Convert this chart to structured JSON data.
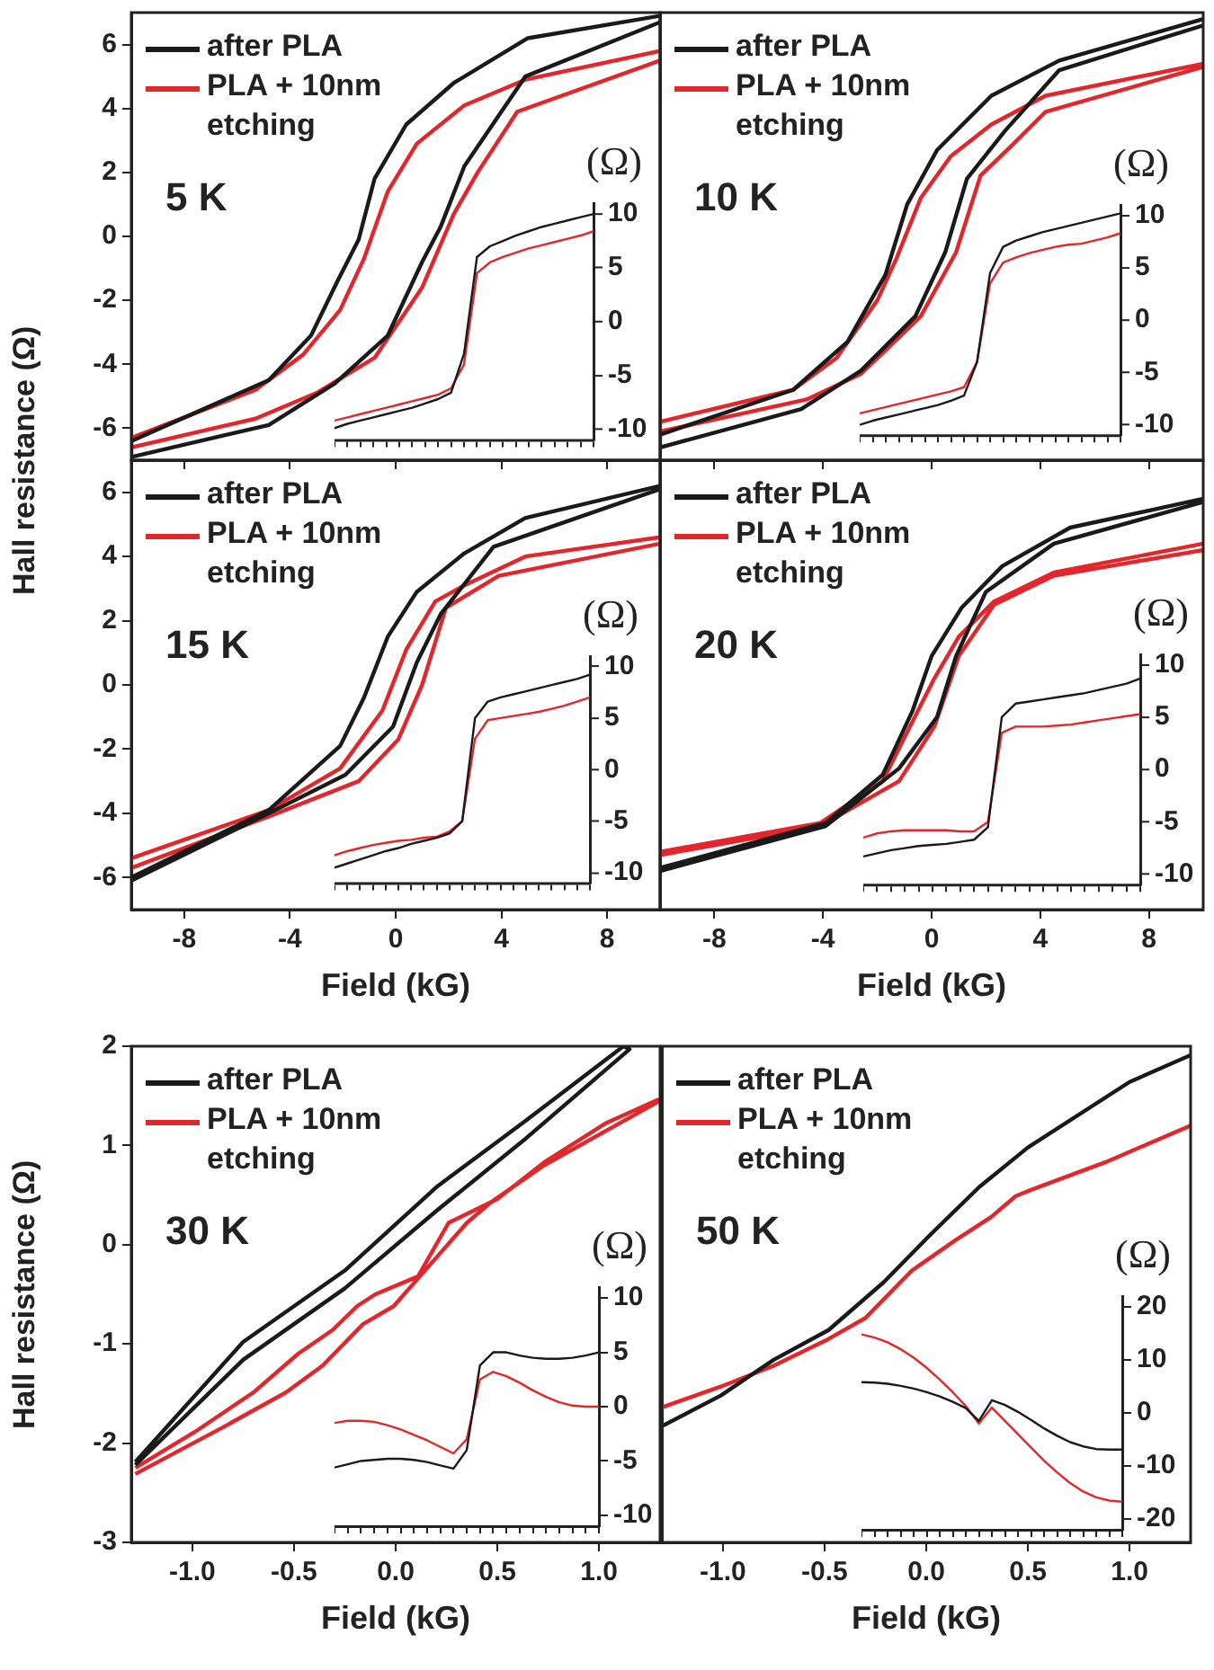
{
  "chart_data": [
    {
      "type": "line",
      "ylabel": "Hall resistance (Ω)",
      "annotations": [
        "5 K"
      ],
      "xlim": [
        -10,
        10
      ],
      "xticks": [
        -8,
        -4,
        0,
        4,
        8
      ],
      "ylim": [
        -7,
        7
      ],
      "yticks": [
        -6,
        -4,
        -2,
        0,
        2,
        4,
        6
      ],
      "tick_labels": "y",
      "legend": "top left",
      "series": [
        {
          "name": "after PLA",
          "color": "#1a1a1a",
          "x": [
            10,
            5,
            2.2,
            0.4,
            -0.8,
            -1.4,
            -2.2,
            -3.2,
            -4.8,
            -10,
            -10,
            -4.8,
            -2.3,
            -0.3,
            1,
            1.7,
            2.6,
            4.9,
            10
          ],
          "values": [
            6.9,
            6.2,
            4.8,
            3.5,
            1.8,
            -0.1,
            -1.4,
            -3.1,
            -4.5,
            -6.4,
            -6.9,
            -5.9,
            -4.6,
            -3.1,
            -0.8,
            0.3,
            2.2,
            5,
            6.7
          ]
        },
        {
          "name": "PLA + 10nm etching",
          "color": "#e3262b",
          "x": [
            10,
            4.9,
            2.6,
            0.8,
            -0.3,
            -1.2,
            -2.1,
            -3.5,
            -5.3,
            -10,
            -10,
            -5.3,
            -3,
            -0.8,
            1,
            2.2,
            3.1,
            4.6,
            10
          ],
          "values": [
            5.8,
            4.9,
            4.1,
            2.9,
            1.4,
            -0.7,
            -2.3,
            -3.7,
            -4.8,
            -6.3,
            -6.6,
            -5.7,
            -4.9,
            -3.8,
            -1.6,
            0.7,
            2,
            3.9,
            5.5
          ]
        }
      ]
    },
    {
      "type": "line",
      "ylabel": "(Ω)",
      "categories": [
        null,
        null,
        null,
        null,
        null,
        null,
        null,
        null,
        null,
        null,
        null,
        null,
        null,
        null,
        null,
        null,
        null,
        null,
        null,
        null,
        null
      ],
      "ylim": [
        -11,
        11
      ],
      "yticks": [
        -10,
        -5,
        0,
        5,
        10
      ],
      "tick_labels": "y",
      "series": [
        {
          "color": "#1a1a1a",
          "values": [
            -9.9,
            -9.5,
            -9.2,
            -8.9,
            -8.6,
            -8.3,
            -8.0,
            -7.6,
            -7.2,
            -6.6,
            -3,
            6,
            7,
            7.5,
            8,
            8.4,
            8.8,
            9.1,
            9.4,
            9.7,
            10
          ]
        },
        {
          "color": "#e3262b",
          "values": [
            -9.2,
            -8.9,
            -8.6,
            -8.3,
            -8.0,
            -7.7,
            -7.4,
            -7.1,
            -6.8,
            -6.2,
            -4,
            4.5,
            5.5,
            6,
            6.4,
            6.8,
            7.1,
            7.4,
            7.7,
            8.0,
            8.4
          ]
        }
      ]
    },
    {
      "type": "line",
      "annotations": [
        "10 K"
      ],
      "xlim": [
        -10,
        10
      ],
      "xticks": [
        -8,
        -4,
        0,
        4,
        8
      ],
      "ylim": [
        -7,
        7
      ],
      "yticks": [
        -6,
        -4,
        -2,
        0,
        2,
        4,
        6
      ],
      "tick_labels": false,
      "legend": "top left",
      "series": [
        {
          "name": "after PLA",
          "color": "#1a1a1a",
          "x": [
            10,
            4.7,
            2.2,
            0.2,
            -0.9,
            -1.7,
            -3.1,
            -5.1,
            -10,
            -10,
            -4.8,
            -2.6,
            -0.6,
            0.5,
            1.3,
            2.7,
            4.7,
            10
          ],
          "values": [
            6.8,
            5.5,
            4.4,
            2.7,
            1.0,
            -1.2,
            -3.3,
            -4.8,
            -6.2,
            -6.6,
            -5.4,
            -4.2,
            -2.5,
            -0.5,
            1.8,
            3.3,
            5.2,
            6.6
          ]
        },
        {
          "name": "PLA + 10nm etching",
          "color": "#e3262b",
          "x": [
            10,
            4.2,
            2.2,
            0.7,
            -0.4,
            -1.3,
            -2,
            -3.5,
            -5.1,
            -10,
            -10,
            -4.6,
            -2.6,
            -0.4,
            0.9,
            1.8,
            2.9,
            4.2,
            10
          ],
          "values": [
            5.4,
            4.4,
            3.5,
            2.5,
            1.2,
            -0.7,
            -2,
            -3.8,
            -4.8,
            -5.8,
            -6.1,
            -5.1,
            -4.3,
            -2.5,
            -0.5,
            1.9,
            2.8,
            3.9,
            5.3
          ]
        }
      ]
    },
    {
      "type": "line",
      "ylabel": "(Ω)",
      "categories": [
        null,
        null,
        null,
        null,
        null,
        null,
        null,
        null,
        null,
        null,
        null,
        null,
        null,
        null,
        null,
        null,
        null,
        null,
        null,
        null,
        null
      ],
      "ylim": [
        -11,
        11
      ],
      "yticks": [
        -10,
        -5,
        0,
        5,
        10
      ],
      "tick_labels": "y",
      "series": [
        {
          "color": "#1a1a1a",
          "values": [
            -10,
            -9.6,
            -9.3,
            -9,
            -8.7,
            -8.4,
            -8.1,
            -7.7,
            -7.2,
            -4,
            4.5,
            7,
            7.6,
            8,
            8.4,
            8.7,
            9,
            9.3,
            9.6,
            9.9,
            10.2
          ]
        },
        {
          "color": "#e3262b",
          "values": [
            -8.9,
            -8.6,
            -8.3,
            -8.0,
            -7.7,
            -7.4,
            -7.1,
            -6.8,
            -6.4,
            -4,
            3.5,
            5.5,
            6,
            6.4,
            6.7,
            7,
            7.2,
            7.3,
            7.6,
            7.9,
            8.3
          ]
        }
      ]
    },
    {
      "type": "line",
      "xlabel": "Field (kG)",
      "annotations": [
        "15 K"
      ],
      "xlim": [
        -10,
        10
      ],
      "xticks": [
        -8,
        -4,
        0,
        4,
        8
      ],
      "ylim": [
        -7,
        7
      ],
      "yticks": [
        -6,
        -4,
        -2,
        0,
        2,
        4,
        6
      ],
      "legend": "top left",
      "series": [
        {
          "name": "after PLA",
          "color": "#1a1a1a",
          "x": [
            10,
            4.9,
            2.6,
            0.8,
            -0.3,
            -1.2,
            -2.1,
            -4.8,
            -10,
            -10,
            -4.8,
            -1.9,
            -0.1,
            0.8,
            1.7,
            3.7,
            10
          ],
          "values": [
            6.2,
            5.2,
            4.1,
            2.9,
            1.5,
            -0.4,
            -1.9,
            -3.9,
            -6,
            -6.1,
            -4,
            -2.8,
            -1.3,
            0.7,
            2.2,
            4.3,
            6.1
          ]
        },
        {
          "name": "PLA + 10nm etching",
          "color": "#e3262b",
          "x": [
            10,
            4.9,
            2.6,
            1.5,
            0.4,
            -0.5,
            -2.1,
            -4.8,
            -10,
            -10,
            -4.8,
            -1.4,
            0.1,
            1,
            1.9,
            3.9,
            10
          ],
          "values": [
            4.6,
            4.0,
            3.1,
            2.6,
            1.1,
            -0.8,
            -2.6,
            -3.9,
            -5.4,
            -5.7,
            -4.1,
            -3,
            -1.7,
            0,
            2.4,
            3.4,
            4.4
          ]
        }
      ]
    },
    {
      "type": "line",
      "ylabel": "(Ω)",
      "categories": [
        null,
        null,
        null,
        null,
        null,
        null,
        null,
        null,
        null,
        null,
        null,
        null,
        null,
        null,
        null,
        null,
        null,
        null,
        null,
        null,
        null
      ],
      "ylim": [
        -11,
        11
      ],
      "yticks": [
        -10,
        -5,
        0,
        5,
        10
      ],
      "tick_labels": "y",
      "series": [
        {
          "color": "#1a1a1a",
          "values": [
            -9.5,
            -9.1,
            -8.7,
            -8.3,
            -7.9,
            -7.6,
            -7.2,
            -6.9,
            -6.6,
            -6.2,
            -5,
            5,
            6.6,
            7,
            7.3,
            7.6,
            7.9,
            8.2,
            8.5,
            8.8,
            9.2
          ]
        },
        {
          "color": "#e3262b",
          "values": [
            -8.3,
            -7.9,
            -7.6,
            -7.3,
            -7.1,
            -6.9,
            -6.8,
            -6.6,
            -6.5,
            -6.0,
            -5,
            3,
            4.8,
            5,
            5.2,
            5.4,
            5.6,
            5.9,
            6.2,
            6.6,
            7.0
          ]
        }
      ]
    },
    {
      "type": "line",
      "xlabel": "Field (kG)",
      "annotations": [
        "20 K"
      ],
      "xlim": [
        -10,
        10
      ],
      "xticks": [
        -8,
        -4,
        0,
        4,
        8
      ],
      "ylim": [
        -7,
        7
      ],
      "yticks": [
        -6,
        -4,
        -2,
        0,
        2,
        4,
        6
      ],
      "tick_labels": "x",
      "legend": "top left",
      "series": [
        {
          "name": "after PLA",
          "color": "#1a1a1a",
          "x": [
            10,
            5.1,
            2.6,
            1.1,
            0,
            -0.7,
            -1.8,
            -3.9,
            -10,
            -10,
            -3.9,
            -1.2,
            0.2,
            0.9,
            2,
            4.5,
            10
          ],
          "values": [
            5.8,
            4.9,
            3.7,
            2.4,
            0.9,
            -0.8,
            -2.8,
            -4.3,
            -5.7,
            -5.8,
            -4.4,
            -2.6,
            -1,
            0.9,
            2.9,
            4.4,
            5.7
          ]
        },
        {
          "name": "PLA + 10nm etching",
          "color": "#e3262b",
          "x": [
            10,
            4.5,
            2.3,
            1,
            0.1,
            -0.8,
            -1.8,
            -4.1,
            -10,
            -10,
            -4.1,
            -1.2,
            0.1,
            1,
            2.3,
            4.5,
            10
          ],
          "values": [
            4.4,
            3.5,
            2.6,
            1.5,
            0.2,
            -1.3,
            -3,
            -4.3,
            -5.2,
            -5.3,
            -4.4,
            -3,
            -1.3,
            0.9,
            2.5,
            3.4,
            4.2
          ]
        }
      ]
    },
    {
      "type": "line",
      "ylabel": "(Ω)",
      "categories": [
        null,
        null,
        null,
        null,
        null,
        null,
        null,
        null,
        null,
        null,
        null,
        null,
        null,
        null,
        null,
        null,
        null,
        null,
        null,
        null,
        null
      ],
      "ylim": [
        -11,
        11
      ],
      "yticks": [
        -10,
        -5,
        0,
        5,
        10
      ],
      "tick_labels": "y",
      "series": [
        {
          "color": "#1a1a1a",
          "values": [
            -8.3,
            -8.0,
            -7.7,
            -7.5,
            -7.3,
            -7.2,
            -7.1,
            -6.9,
            -6.7,
            -5.5,
            5,
            6.3,
            6.5,
            6.7,
            6.9,
            7.1,
            7.3,
            7.6,
            7.9,
            8.2,
            8.7
          ]
        },
        {
          "color": "#e3262b",
          "values": [
            -6.5,
            -6.1,
            -5.9,
            -5.8,
            -5.8,
            -5.8,
            -5.8,
            -5.9,
            -5.9,
            -5,
            3.5,
            4.1,
            4.1,
            4.1,
            4.2,
            4.3,
            4.5,
            4.7,
            4.9,
            5.1,
            5.3
          ]
        }
      ]
    },
    {
      "type": "line",
      "xlabel": "Field (kG)",
      "ylabel": "Hall resistance (Ω)",
      "annotations": [
        "30 K"
      ],
      "xlim": [
        -1.3,
        1.3
      ],
      "xticks": [
        {
          "value": -1,
          "label": "-1.0"
        },
        -0.5,
        {
          "value": 0,
          "label": "0.0"
        },
        0.5,
        {
          "value": 1,
          "label": "1.0"
        }
      ],
      "ylim": [
        -3,
        2
      ],
      "yticks": [
        -3,
        -2,
        -1,
        0,
        1,
        2
      ],
      "legend": "top left",
      "series": [
        {
          "name": "after PLA",
          "color": "#1a1a1a",
          "x": [
            -1.28,
            -0.75,
            -0.25,
            0.2,
            0.64,
            1.15,
            1.12,
            0.64,
            0.2,
            -0.25,
            -0.75,
            -1.28
          ],
          "values": [
            -2.22,
            -1.16,
            -0.44,
            0.34,
            1.07,
            1.97,
            2,
            1.25,
            0.58,
            -0.26,
            -0.98,
            -2.19
          ]
        },
        {
          "name": "PLA + 10nm etching",
          "color": "#e3262b",
          "x": [
            -1.28,
            -0.84,
            -0.54,
            -0.36,
            -0.16,
            -0.01,
            0.17,
            0.35,
            0.47,
            0.73,
            1.29,
            1.29,
            1.03,
            0.73,
            0.5,
            0.38,
            0.26,
            0.11,
            -0.1,
            -0.19,
            -0.31,
            -0.48,
            -0.7,
            -0.99,
            -1.28
          ],
          "values": [
            -2.31,
            -1.83,
            -1.49,
            -1.22,
            -0.8,
            -0.62,
            -0.2,
            0.22,
            0.43,
            0.8,
            1.44,
            1.46,
            1.22,
            0.83,
            0.46,
            0.34,
            0.22,
            -0.32,
            -0.5,
            -0.62,
            -0.86,
            -1.1,
            -1.49,
            -1.89,
            -2.25
          ]
        }
      ]
    },
    {
      "type": "line",
      "ylabel": "(Ω)",
      "categories": [
        null,
        null,
        null,
        null,
        null,
        null,
        null,
        null,
        null,
        null,
        null,
        null,
        null,
        null,
        null,
        null,
        null,
        null,
        null,
        null,
        null
      ],
      "ylim": [
        -11,
        11
      ],
      "yticks": [
        -10,
        -5,
        0,
        5,
        10
      ],
      "tick_labels": "y",
      "series": [
        {
          "color": "#1a1a1a",
          "values": [
            -5.6,
            -5.3,
            -5.0,
            -4.9,
            -4.8,
            -4.8,
            -4.9,
            -5.1,
            -5.4,
            -5.7,
            -4,
            3.8,
            5,
            5,
            4.7,
            4.5,
            4.4,
            4.4,
            4.5,
            4.7,
            5.0
          ]
        },
        {
          "color": "#e3262b",
          "values": [
            -1.5,
            -1.3,
            -1.3,
            -1.4,
            -1.7,
            -2.1,
            -2.6,
            -3.1,
            -3.7,
            -4.3,
            -3,
            2.5,
            3.2,
            2.8,
            2.2,
            1.5,
            0.9,
            0.4,
            0.1,
            0,
            0
          ]
        }
      ]
    },
    {
      "type": "line",
      "xlabel": "Field (kG)",
      "annotations": [
        "50 K"
      ],
      "xlim": [
        -1.3,
        1.3
      ],
      "xticks": [
        {
          "value": -1,
          "label": "-1.0"
        },
        -0.5,
        {
          "value": 0,
          "label": "0.0"
        },
        0.5,
        {
          "value": 1,
          "label": "1.0"
        }
      ],
      "ylim": [
        -3,
        2
      ],
      "yticks": [
        -3,
        -2,
        -1,
        0,
        1,
        2
      ],
      "tick_labels": "x",
      "legend": "top left",
      "series": [
        {
          "name": "after PLA",
          "color": "#1a1a1a",
          "x": [
            -1.3,
            -1.01,
            -0.75,
            -0.48,
            -0.21,
            0.02,
            0.26,
            0.5,
            1,
            1.3
          ],
          "values": [
            -1.83,
            -1.52,
            -1.16,
            -0.86,
            -0.38,
            0.1,
            0.58,
            0.98,
            1.64,
            1.91
          ]
        },
        {
          "name": "PLA + 10nm etching",
          "color": "#e3262b",
          "x": [
            -1.3,
            -1.01,
            -0.75,
            -0.48,
            -0.3,
            -0.07,
            0.14,
            0.32,
            0.44,
            0.5,
            0.88,
            1.3
          ],
          "values": [
            -1.64,
            -1.43,
            -1.22,
            -0.95,
            -0.74,
            -0.26,
            0.04,
            0.28,
            0.49,
            0.54,
            0.83,
            1.2
          ]
        }
      ]
    },
    {
      "type": "line",
      "ylabel": "(Ω)",
      "categories": [
        null,
        null,
        null,
        null,
        null,
        null,
        null,
        null,
        null,
        null,
        null,
        null,
        null,
        null,
        null,
        null,
        null,
        null,
        null,
        null,
        null
      ],
      "ylim": [
        -22,
        22
      ],
      "yticks": [
        -20,
        -10,
        0,
        10,
        20
      ],
      "tick_labels": "y",
      "series": [
        {
          "color": "#1a1a1a",
          "values": [
            5.8,
            5.7,
            5.5,
            5.1,
            4.6,
            3.9,
            3.1,
            2.1,
            0.9,
            -1.5,
            2.4,
            1.5,
            0.2,
            -1.3,
            -2.9,
            -4.3,
            -5.5,
            -6.3,
            -6.8,
            -6.9,
            -6.9
          ]
        },
        {
          "color": "#e3262b",
          "values": [
            14.8,
            14.2,
            13.3,
            12.0,
            10.4,
            8.5,
            6.3,
            3.9,
            1.3,
            -2.0,
            1.0,
            -1.5,
            -4.0,
            -6.5,
            -9,
            -11.2,
            -13.2,
            -14.8,
            -15.9,
            -16.5,
            -16.7
          ]
        }
      ]
    }
  ]
}
